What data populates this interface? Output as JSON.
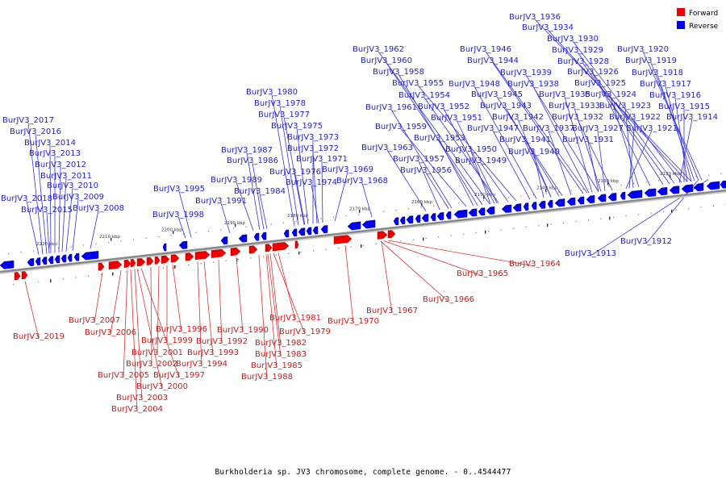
{
  "caption": "Burkholderia sp. JV3 chromosome, complete genome. - 0..4544477",
  "legend": [
    {
      "label": "Forward",
      "color": "#ee0000"
    },
    {
      "label": "Reverse",
      "color": "#0000ee"
    }
  ],
  "colors": {
    "forward": "#ee0000",
    "reverse": "#0000ee",
    "forward_label": "#cc1a1a",
    "reverse_label": "#1f1fcc",
    "backbone": "#888888"
  },
  "ticks": [
    "2220 kbp",
    "2210 kbp",
    "2200 kbp",
    "2190 kbp",
    "2180 kbp",
    "2170 kbp",
    "2160 kbp",
    "2150 kbp",
    "2140 kbp",
    "2130 kbp",
    "2120 kbp"
  ],
  "reverse_labels": [
    "BurJV3_1936",
    "BurJV3_1934",
    "BurJV3_1930",
    "BurJV3_1929",
    "BurJV3_1928",
    "BurJV3_1926",
    "BurJV3_1925",
    "BurJV3_1924",
    "BurJV3_1923",
    "BurJV3_1922",
    "BurJV3_1921",
    "BurJV3_1920",
    "BurJV3_1919",
    "BurJV3_1918",
    "BurJV3_1917",
    "BurJV3_1916",
    "BurJV3_1915",
    "BurJV3_1914",
    "BurJV3_1946",
    "BurJV3_1944",
    "BurJV3_1939",
    "BurJV3_1938",
    "BurJV3_1935",
    "BurJV3_1933",
    "BurJV3_1932",
    "BurJV3_1931",
    "BurJV3_1927",
    "BurJV3_1948",
    "BurJV3_1945",
    "BurJV3_1943",
    "BurJV3_1942",
    "BurJV3_1941",
    "BurJV3_1940",
    "BurJV3_1937",
    "BurJV3_1947",
    "BurJV3_1962",
    "BurJV3_1960",
    "BurJV3_1958",
    "BurJV3_1955",
    "BurJV3_1954",
    "BurJV3_1952",
    "BurJV3_1951",
    "BurJV3_1950",
    "BurJV3_1949",
    "BurJV3_1961",
    "BurJV3_1959",
    "BurJV3_1953",
    "BurJV3_1963",
    "BurJV3_1957",
    "BurJV3_1956",
    "BurJV3_1980",
    "BurJV3_1978",
    "BurJV3_1977",
    "BurJV3_1975",
    "BurJV3_1973",
    "BurJV3_1972",
    "BurJV3_1971",
    "BurJV3_1969",
    "BurJV3_1976",
    "BurJV3_1974",
    "BurJV3_1968",
    "BurJV3_1987",
    "BurJV3_1986",
    "BurJV3_1989",
    "BurJV3_1984",
    "BurJV3_1995",
    "BurJV3_1991",
    "BurJV3_1998",
    "BurJV3_2017",
    "BurJV3_2016",
    "BurJV3_2014",
    "BurJV3_2013",
    "BurJV3_2012",
    "BurJV3_2011",
    "BurJV3_2010",
    "BurJV3_2009",
    "BurJV3_2018",
    "BurJV3_2015",
    "BurJV3_2008",
    "BurJV3_1912",
    "BurJV3_1913"
  ],
  "forward_labels": [
    "BurJV3_1964",
    "BurJV3_1965",
    "BurJV3_1966",
    "BurJV3_1967",
    "BurJV3_1970",
    "BurJV3_1981",
    "BurJV3_1979",
    "BurJV3_1982",
    "BurJV3_1983",
    "BurJV3_1985",
    "BurJV3_1988",
    "BurJV3_1990",
    "BurJV3_1992",
    "BurJV3_1993",
    "BurJV3_1994",
    "BurJV3_1996",
    "BurJV3_1999",
    "BurJV3_2001",
    "BurJV3_2002",
    "BurJV3_1997",
    "BurJV3_2000",
    "BurJV3_2003",
    "BurJV3_2004",
    "BurJV3_2005",
    "BurJV3_2006",
    "BurJV3_2007",
    "BurJV3_2019"
  ]
}
